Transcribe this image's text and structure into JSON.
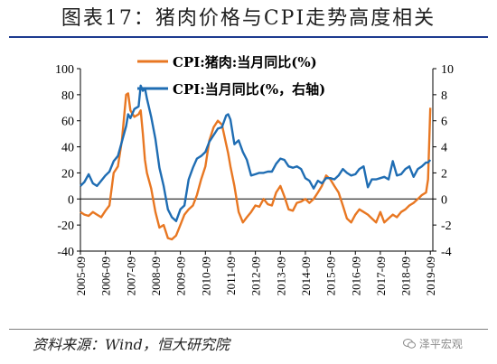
{
  "header": {
    "title": "图表17：猪肉价格与CPI走势高度相关"
  },
  "footer": {
    "source": "资料来源：Wind，恒大研究院",
    "watermark": "泽平宏观"
  },
  "chart_data": {
    "type": "line",
    "title": "",
    "xlabel": "",
    "ylabel": "",
    "x_tick_labels": [
      "2005-09",
      "2006-09",
      "2007-09",
      "2008-09",
      "2009-09",
      "2010-09",
      "2011-09",
      "2012-09",
      "2013-09",
      "2014-09",
      "2015-09",
      "2016-09",
      "2017-09",
      "2018-09",
      "2019-09"
    ],
    "y_left": {
      "lim": [
        -40,
        100
      ],
      "ticks": [
        -40,
        -20,
        0,
        20,
        40,
        60,
        80,
        100
      ]
    },
    "y_right": {
      "lim": [
        -4,
        10
      ],
      "ticks": [
        -4,
        -2,
        0,
        2,
        4,
        6,
        8,
        10
      ]
    },
    "grid": false,
    "legend_position": "top-center",
    "series": [
      {
        "name": "CPI:猪肉:当月同比(%)",
        "axis": "left",
        "color": "#E87722",
        "x": [
          2005.67,
          2005.83,
          2006.0,
          2006.17,
          2006.33,
          2006.5,
          2006.67,
          2006.83,
          2007.0,
          2007.17,
          2007.33,
          2007.5,
          2007.58,
          2007.67,
          2007.83,
          2008.0,
          2008.08,
          2008.17,
          2008.25,
          2008.33,
          2008.5,
          2008.67,
          2008.83,
          2009.0,
          2009.17,
          2009.33,
          2009.5,
          2009.67,
          2009.83,
          2010.0,
          2010.17,
          2010.33,
          2010.5,
          2010.67,
          2010.83,
          2011.0,
          2011.17,
          2011.33,
          2011.5,
          2011.58,
          2011.67,
          2011.83,
          2012.0,
          2012.17,
          2012.33,
          2012.5,
          2012.67,
          2012.83,
          2013.0,
          2013.17,
          2013.33,
          2013.5,
          2013.67,
          2013.83,
          2014.0,
          2014.17,
          2014.33,
          2014.5,
          2014.67,
          2014.83,
          2015.0,
          2015.17,
          2015.33,
          2015.5,
          2015.67,
          2015.83,
          2016.0,
          2016.17,
          2016.33,
          2016.5,
          2016.67,
          2016.83,
          2017.0,
          2017.17,
          2017.33,
          2017.5,
          2017.67,
          2017.83,
          2018.0,
          2018.17,
          2018.33,
          2018.5,
          2018.67,
          2018.83,
          2019.0,
          2019.17,
          2019.33,
          2019.5,
          2019.58,
          2019.67
        ],
        "values": [
          -10,
          -12,
          -13,
          -10,
          -12,
          -14,
          -9,
          -5,
          20,
          25,
          45,
          80,
          81,
          68,
          63,
          65,
          68,
          50,
          30,
          20,
          8,
          -10,
          -22,
          -20,
          -30,
          -31,
          -28,
          -20,
          -12,
          -8,
          -5,
          3,
          15,
          25,
          45,
          55,
          60,
          57,
          42,
          35,
          25,
          10,
          -10,
          -18,
          -14,
          -10,
          -5,
          -6,
          0,
          -4,
          -5,
          5,
          10,
          2,
          -8,
          -9,
          -3,
          -2,
          0,
          -3,
          0,
          5,
          10,
          18,
          15,
          10,
          5,
          -5,
          -15,
          -18,
          -12,
          -8,
          -10,
          -12,
          -15,
          -18,
          -10,
          -18,
          -15,
          -12,
          -14,
          -10,
          -8,
          -5,
          -3,
          0,
          3,
          5,
          15,
          70
        ]
      },
      {
        "name": "CPI:当月同比(%，右轴)",
        "axis": "right",
        "color": "#1F6DB3",
        "x": [
          2005.67,
          2005.83,
          2006.0,
          2006.17,
          2006.33,
          2006.5,
          2006.67,
          2006.83,
          2007.0,
          2007.17,
          2007.33,
          2007.5,
          2007.58,
          2007.67,
          2007.83,
          2008.0,
          2008.08,
          2008.17,
          2008.25,
          2008.33,
          2008.5,
          2008.67,
          2008.83,
          2009.0,
          2009.17,
          2009.33,
          2009.5,
          2009.67,
          2009.83,
          2010.0,
          2010.17,
          2010.33,
          2010.5,
          2010.67,
          2010.83,
          2011.0,
          2011.17,
          2011.33,
          2011.5,
          2011.58,
          2011.67,
          2011.83,
          2012.0,
          2012.17,
          2012.33,
          2012.5,
          2012.67,
          2012.83,
          2013.0,
          2013.17,
          2013.33,
          2013.5,
          2013.67,
          2013.83,
          2014.0,
          2014.17,
          2014.33,
          2014.5,
          2014.67,
          2014.83,
          2015.0,
          2015.17,
          2015.33,
          2015.5,
          2015.67,
          2015.83,
          2016.0,
          2016.17,
          2016.33,
          2016.5,
          2016.67,
          2016.83,
          2017.0,
          2017.17,
          2017.33,
          2017.5,
          2017.67,
          2017.83,
          2018.0,
          2018.17,
          2018.33,
          2018.5,
          2018.67,
          2018.83,
          2019.0,
          2019.17,
          2019.33,
          2019.5,
          2019.58,
          2019.67
        ],
        "values": [
          1.0,
          1.3,
          1.9,
          1.2,
          1.0,
          1.4,
          1.8,
          2.1,
          2.9,
          3.3,
          4.4,
          5.6,
          6.5,
          6.2,
          6.9,
          7.1,
          8.7,
          8.3,
          8.5,
          7.7,
          6.3,
          4.6,
          2.4,
          1.0,
          -0.8,
          -1.4,
          -1.7,
          -0.8,
          -0.5,
          1.5,
          2.4,
          3.1,
          3.3,
          3.6,
          4.4,
          4.9,
          5.4,
          5.5,
          6.4,
          6.5,
          6.1,
          4.2,
          4.5,
          3.6,
          3.0,
          1.8,
          1.9,
          2.0,
          2.0,
          2.1,
          2.1,
          2.7,
          3.1,
          3.0,
          2.5,
          2.4,
          2.5,
          2.3,
          1.6,
          1.4,
          0.8,
          1.4,
          1.2,
          1.6,
          1.6,
          1.5,
          1.8,
          2.3,
          2.0,
          1.8,
          1.9,
          2.3,
          2.5,
          0.9,
          1.5,
          1.5,
          1.6,
          1.7,
          1.5,
          2.9,
          1.8,
          1.9,
          2.3,
          2.5,
          1.7,
          2.3,
          2.5,
          2.8,
          2.8,
          3.0
        ]
      }
    ]
  }
}
